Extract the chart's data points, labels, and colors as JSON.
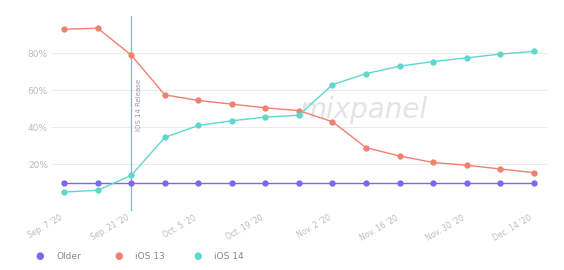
{
  "x_labels": [
    "Sep. 7 '20",
    "Sep. 21 '20",
    "Oct. 5 '20",
    "Oct. 19 '20",
    "Nov. 2 '20",
    "Nov. 16 '20",
    "Nov. 30 '20",
    "Dec. 14 '20"
  ],
  "older_x": [
    0,
    0.5,
    1,
    1.5,
    2,
    2.5,
    3,
    3.5,
    4,
    4.5,
    5,
    5.5,
    6,
    6.5,
    7
  ],
  "older_y": [
    0.1,
    0.1,
    0.1,
    0.1,
    0.1,
    0.1,
    0.1,
    0.1,
    0.1,
    0.1,
    0.1,
    0.1,
    0.1,
    0.1,
    0.1
  ],
  "ios13_x": [
    0,
    0.5,
    1,
    1.5,
    2,
    2.5,
    3,
    3.5,
    4,
    4.5,
    5,
    5.5,
    6,
    6.5,
    7
  ],
  "ios13_y": [
    0.93,
    0.935,
    0.79,
    0.575,
    0.545,
    0.525,
    0.505,
    0.49,
    0.43,
    0.29,
    0.245,
    0.21,
    0.195,
    0.175,
    0.155
  ],
  "ios14_x": [
    0,
    0.5,
    1,
    1.5,
    2,
    2.5,
    3,
    3.5,
    4,
    4.5,
    5,
    5.5,
    6,
    6.5,
    7
  ],
  "ios14_y": [
    0.05,
    0.06,
    0.14,
    0.345,
    0.41,
    0.435,
    0.455,
    0.465,
    0.63,
    0.69,
    0.73,
    0.755,
    0.775,
    0.795,
    0.81
  ],
  "color_older": "#7b68ee",
  "color_ios13": "#f08070",
  "color_ios14": "#5dd8cc",
  "vline_x": 1,
  "vline_label": "iOS 14 Release",
  "yticks": [
    0.2,
    0.4,
    0.6,
    0.8
  ],
  "ylim": [
    -0.05,
    1.0
  ],
  "xlim": [
    -0.2,
    7.2
  ],
  "background": "#ffffff",
  "watermark": "mixpanel",
  "marker_size": 3.5,
  "linewidth": 1.0,
  "legend_labels": [
    "Older",
    "iOS 13",
    "iOS 14"
  ]
}
